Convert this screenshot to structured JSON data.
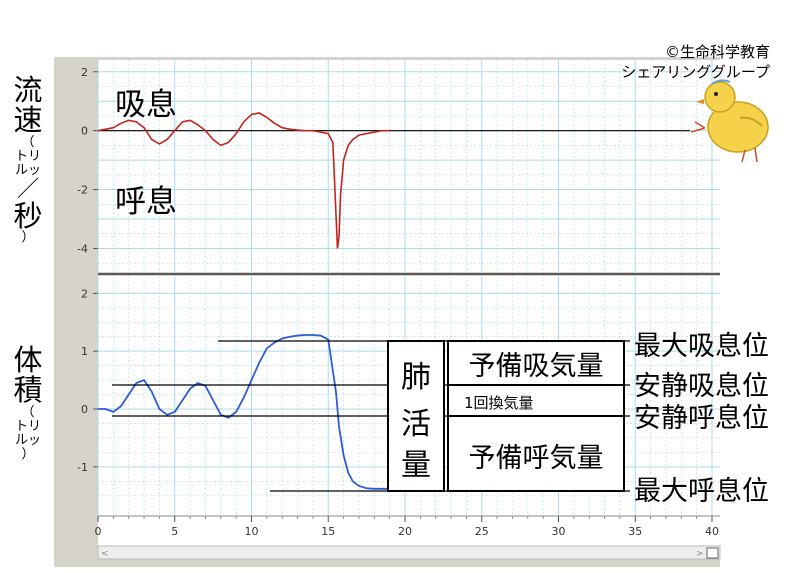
{
  "credit": {
    "line1": "©生命科学教育",
    "line2": "シェアリンググループ"
  },
  "flow_panel": {
    "ylabel_main1": "流",
    "ylabel_main2": "速",
    "ylabel_unit_open": "（",
    "ylabel_unit1": "トリ",
    "ylabel_unit2": "ルッ",
    "ylabel_slash": "／",
    "ylabel_per": "秒",
    "ylabel_close": "）",
    "inhale_label": "吸息",
    "exhale_label": "呼息"
  },
  "volume_panel": {
    "ylabel_main1": "体",
    "ylabel_main2": "積",
    "ylabel_unit_open": "（",
    "ylabel_unit1": "トリ",
    "ylabel_unit2": "ルッ",
    "ylabel_close": "）"
  },
  "annotations": {
    "vital_capacity": [
      "肺",
      "活",
      "量"
    ],
    "inspiratory_reserve": "予備吸気量",
    "tidal_volume": "1回換気量",
    "expiratory_reserve": "予備呼気量",
    "max_inspiratory_level": "最大吸息位",
    "rest_inspiratory_level": "安静吸息位",
    "rest_expiratory_level": "安静呼息位",
    "max_expiratory_level": "最大呼息位"
  },
  "colors": {
    "flow_line": "#c0251c",
    "volume_line": "#2f5ad6",
    "grid": "#a9dde8",
    "panel": "#d6d3ca"
  },
  "chart_data": [
    {
      "type": "line",
      "xlabel": "",
      "ylabel": "流速（トリルッ／秒）",
      "xlim": [
        0,
        40
      ],
      "ylim": [
        -4.8,
        2.4
      ],
      "yticks": [
        "2",
        "0",
        "-2",
        "-4"
      ],
      "grid": true,
      "series": [
        {
          "x": [
            0,
            0.5,
            1,
            1.5,
            2,
            2.5,
            3,
            3.5,
            4,
            4.5,
            5,
            5.5,
            6,
            6.5,
            7,
            7.5,
            8,
            8.5,
            9,
            9.5,
            10,
            10.5,
            11,
            11.5,
            12,
            12.5,
            13,
            13.5,
            14,
            14.5,
            15,
            15.3,
            15.5,
            15.6,
            15.7,
            15.8,
            16,
            16.3,
            16.6,
            17,
            17.5,
            18,
            18.5,
            19
          ],
          "y": [
            0,
            0.05,
            0.1,
            0.25,
            0.35,
            0.3,
            0.1,
            -0.3,
            -0.45,
            -0.3,
            0,
            0.3,
            0.35,
            0.2,
            0,
            -0.3,
            -0.5,
            -0.4,
            -0.1,
            0.3,
            0.55,
            0.6,
            0.45,
            0.25,
            0.1,
            0.05,
            0.02,
            0,
            0,
            -0.05,
            -0.1,
            -0.4,
            -2.8,
            -4,
            -3.6,
            -2.2,
            -1.0,
            -0.5,
            -0.3,
            -0.15,
            -0.1,
            -0.05,
            0,
            0
          ]
        }
      ]
    },
    {
      "type": "line",
      "xlabel": "",
      "ylabel": "体積（トリルッ）",
      "xlim": [
        0,
        40
      ],
      "ylim": [
        -1.85,
        2.3
      ],
      "xticks": [
        "0",
        "5",
        "10",
        "15",
        "20",
        "25",
        "30",
        "35",
        "40"
      ],
      "yticks": [
        "2",
        "1",
        "0",
        "-1"
      ],
      "grid": true,
      "series": [
        {
          "x": [
            0,
            0.5,
            1,
            1.5,
            2,
            2.5,
            3,
            3.5,
            4,
            4.5,
            5,
            5.5,
            6,
            6.5,
            7,
            7.5,
            8,
            8.5,
            9,
            9.5,
            10,
            10.5,
            11,
            11.5,
            12,
            12.5,
            13,
            13.5,
            14,
            14.5,
            15,
            15.5,
            15.7,
            16,
            16.3,
            16.6,
            17,
            17.5,
            18,
            18.5,
            19
          ],
          "y": [
            0,
            0,
            -0.05,
            0.05,
            0.25,
            0.45,
            0.5,
            0.3,
            0,
            -0.1,
            -0.05,
            0.15,
            0.35,
            0.45,
            0.4,
            0.15,
            -0.1,
            -0.15,
            -0.05,
            0.2,
            0.5,
            0.8,
            1.05,
            1.15,
            1.22,
            1.25,
            1.27,
            1.28,
            1.28,
            1.27,
            1.2,
            0.3,
            -0.3,
            -0.8,
            -1.1,
            -1.25,
            -1.33,
            -1.37,
            -1.38,
            -1.38,
            -1.38
          ]
        }
      ]
    }
  ]
}
